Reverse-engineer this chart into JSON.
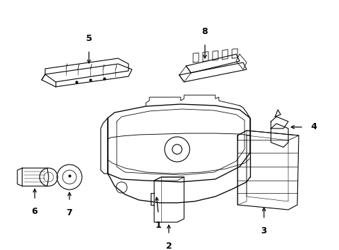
{
  "background_color": "#ffffff",
  "line_color": "#000000",
  "figsize": [
    4.89,
    3.6
  ],
  "dpi": 100,
  "lw": 0.8
}
